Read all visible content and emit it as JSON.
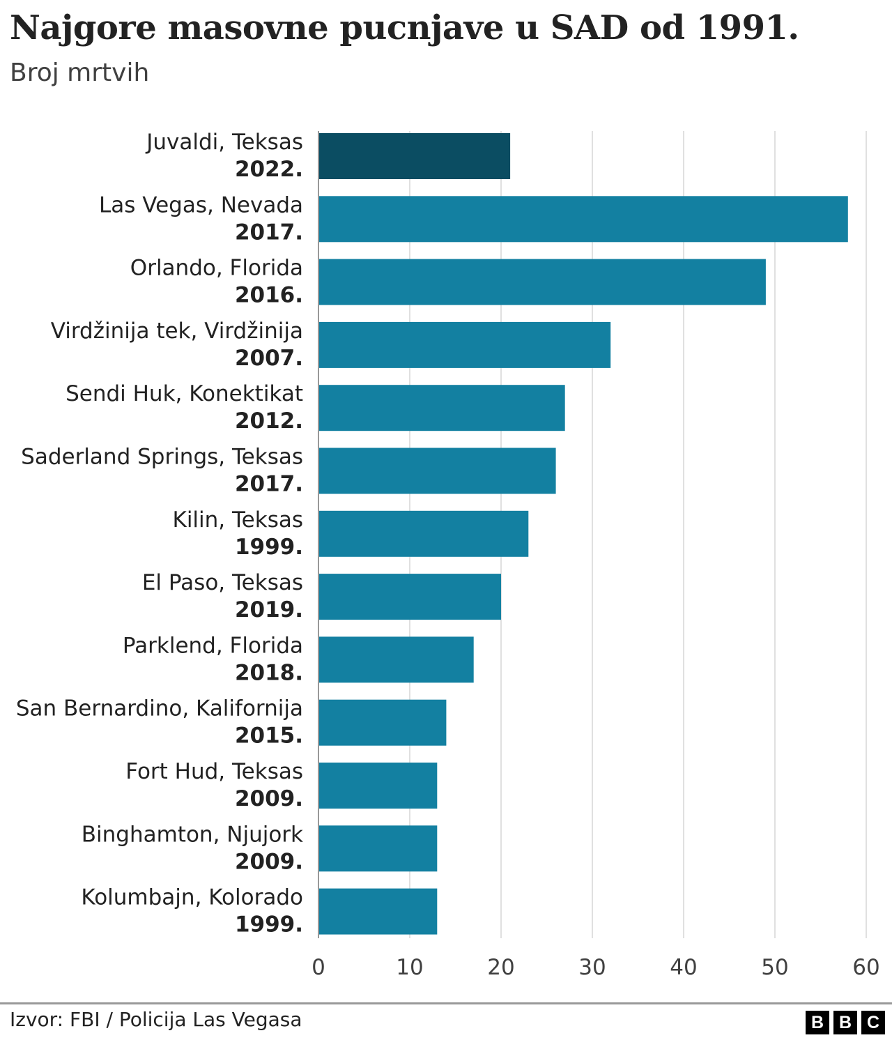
{
  "chart_data": {
    "type": "bar",
    "orientation": "horizontal",
    "title": "Najgore masovne pucnjave u SAD od 1991.",
    "subtitle": "Broj mrtvih",
    "categories": [
      {
        "place": "Juvaldi, Teksas",
        "year": "2022."
      },
      {
        "place": "Las Vegas, Nevada",
        "year": "2017."
      },
      {
        "place": "Orlando, Florida",
        "year": "2016."
      },
      {
        "place": "Virdžinija tek, Virdžinija",
        "year": "2007."
      },
      {
        "place": "Sendi Huk, Konektikat",
        "year": "2012."
      },
      {
        "place": "Saderland Springs, Teksas",
        "year": "2017."
      },
      {
        "place": "Kilin, Teksas",
        "year": "1999."
      },
      {
        "place": "El Paso, Teksas",
        "year": "2019."
      },
      {
        "place": "Parklend, Florida",
        "year": "2018."
      },
      {
        "place": "San Bernardino, Kalifornija",
        "year": "2015."
      },
      {
        "place": "Fort Hud, Teksas",
        "year": "2009."
      },
      {
        "place": "Binghamton, Njujork",
        "year": "2009."
      },
      {
        "place": "Kolumbajn, Kolorado",
        "year": "1999."
      }
    ],
    "values": [
      21,
      58,
      49,
      32,
      27,
      26,
      23,
      20,
      17,
      14,
      13,
      13,
      13
    ],
    "highlight_index": 0,
    "colors": {
      "highlight": "#0b4d62",
      "default": "#1380a1",
      "grid": "#d6d6d6"
    },
    "xlim": [
      0,
      60
    ],
    "xticks": [
      "0",
      "10",
      "20",
      "30",
      "40",
      "50",
      "60"
    ],
    "grid": true,
    "xlabel": "",
    "ylabel": ""
  },
  "footer": {
    "source": "Izvor: FBI / Policija Las Vegasa",
    "logo_letters": [
      "B",
      "B",
      "C"
    ]
  }
}
